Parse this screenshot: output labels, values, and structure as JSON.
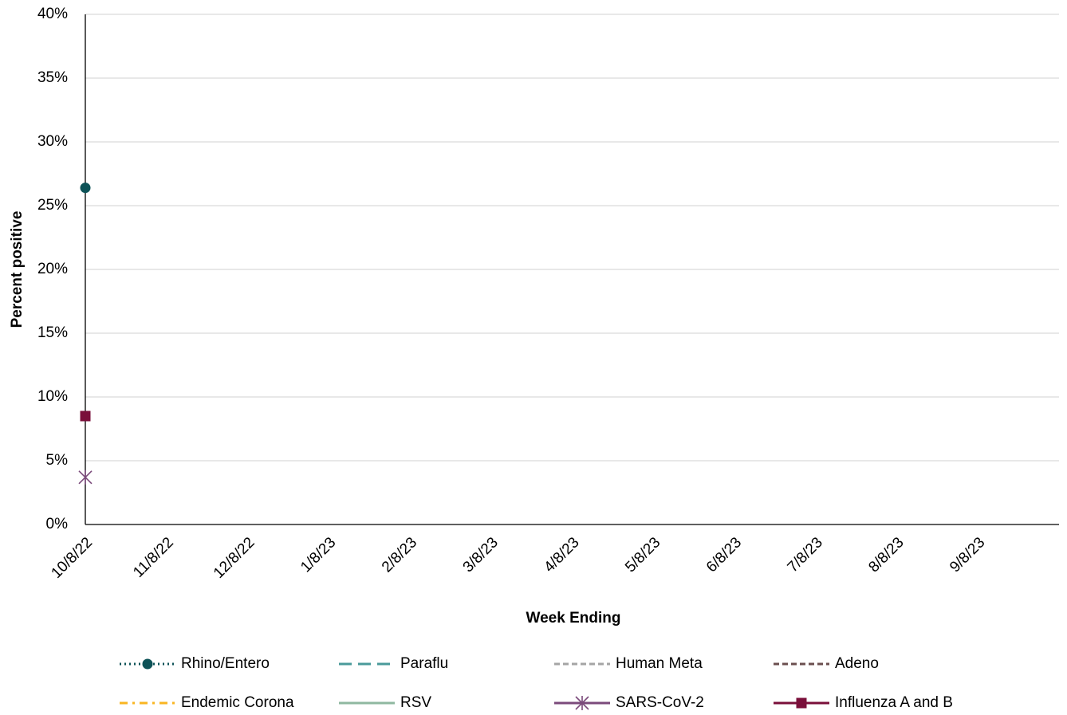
{
  "chart_data": {
    "type": "line",
    "x_label": "Week Ending",
    "y_label": "Percent positive",
    "categories": [
      "10/8/22",
      "11/8/22",
      "12/8/22",
      "1/8/23",
      "2/8/23",
      "3/8/23",
      "4/8/23",
      "5/8/23",
      "6/8/23",
      "7/8/23",
      "8/8/23",
      "9/8/23",
      null
    ],
    "series": [
      {
        "name": "Rhino/Entero",
        "color": "#0d5257",
        "dash": "dotted",
        "marker": "circle",
        "values": [
          26.4,
          null,
          null,
          null,
          null,
          null,
          null,
          null,
          null,
          null,
          null,
          null,
          null
        ]
      },
      {
        "name": "Paraflu",
        "color": "#4a9a9a",
        "dash": "long-dash",
        "marker": "none",
        "values": [
          null,
          null,
          null,
          null,
          null,
          null,
          null,
          null,
          null,
          null,
          null,
          null,
          null
        ]
      },
      {
        "name": "Human Meta",
        "color": "#a5a5a5",
        "dash": "dashed",
        "marker": "none",
        "values": [
          null,
          null,
          null,
          null,
          null,
          null,
          null,
          null,
          null,
          null,
          null,
          null,
          null
        ]
      },
      {
        "name": "Adeno",
        "color": "#6b4f4f",
        "dash": "dashed",
        "marker": "none",
        "values": [
          null,
          null,
          null,
          null,
          null,
          null,
          null,
          null,
          null,
          null,
          null,
          null,
          null
        ]
      },
      {
        "name": "Endemic Corona",
        "color": "#f9b521",
        "dash": "dash-dot",
        "marker": "none",
        "values": [
          null,
          null,
          null,
          null,
          null,
          null,
          null,
          null,
          null,
          null,
          null,
          null,
          null
        ]
      },
      {
        "name": "RSV",
        "color": "#8fb8a0",
        "dash": "solid",
        "marker": "none",
        "values": [
          null,
          null,
          null,
          null,
          null,
          null,
          null,
          null,
          null,
          null,
          null,
          null,
          null
        ]
      },
      {
        "name": "SARS-CoV-2",
        "color": "#7b4a7b",
        "dash": "solid",
        "marker": "star",
        "values": [
          3.7,
          null,
          null,
          null,
          null,
          null,
          null,
          null,
          null,
          null,
          null,
          null,
          null
        ]
      },
      {
        "name": "Influenza A and B",
        "color": "#7a0f3a",
        "dash": "solid",
        "marker": "square",
        "values": [
          8.5,
          null,
          null,
          null,
          null,
          null,
          null,
          null,
          null,
          null,
          null,
          null,
          null
        ]
      }
    ],
    "ylim": [
      0,
      40
    ],
    "yticks": [
      {
        "value": 0,
        "label": "0%"
      },
      {
        "value": 5,
        "label": "5%"
      },
      {
        "value": 10,
        "label": "10%"
      },
      {
        "value": 15,
        "label": "15%"
      },
      {
        "value": 20,
        "label": "20%"
      },
      {
        "value": 25,
        "label": "25%"
      },
      {
        "value": 30,
        "label": "30%"
      },
      {
        "value": 35,
        "label": "35%"
      },
      {
        "value": 40,
        "label": "40%"
      }
    ],
    "grid": true,
    "legend": "bottom"
  }
}
